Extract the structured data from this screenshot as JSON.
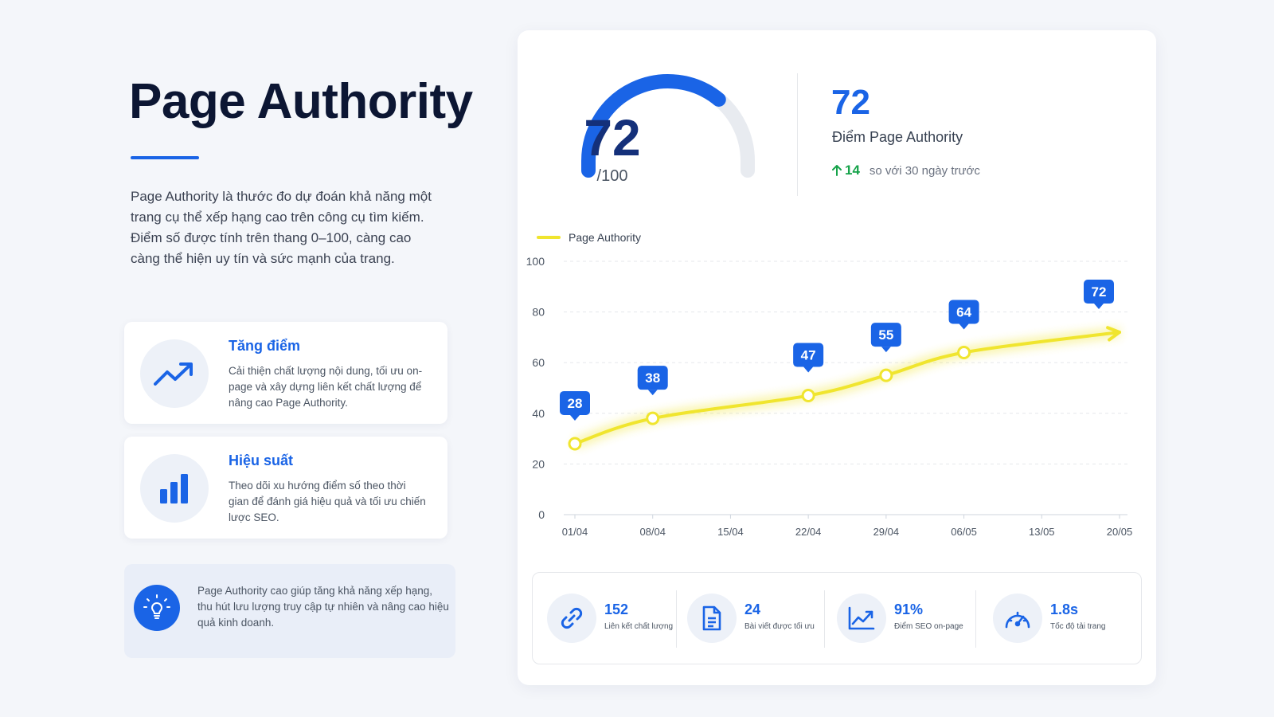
{
  "page": {
    "title": "Page Authority",
    "intro": "Page Authority là thước đo dự đoán khả năng một trang cụ thể xếp hạng cao trên công cụ tìm kiếm. Điểm số được tính trên thang 0–100, càng cao càng thể hiện uy tín và sức mạnh của trang."
  },
  "features": [
    {
      "title": "Tăng điểm",
      "description": "Cải thiện chất lượng nội dung, tối ưu on-page và xây dựng liên kết chất lượng để nâng cao Page Authority.",
      "icon": "trend-up-icon"
    },
    {
      "title": "Hiệu suất",
      "description": "Theo dõi xu hướng điểm số theo thời gian để đánh giá hiệu quả và tối ưu chiến lược SEO.",
      "icon": "bar-chart-icon"
    }
  ],
  "tip": {
    "text": "Page Authority cao giúp tăng khả năng xếp hạng, thu hút lưu lượng truy cập tự nhiên và nâng cao hiệu quả kinh doanh.",
    "icon": "lightbulb-icon"
  },
  "gauge": {
    "value": "72",
    "max_label": "/100",
    "fraction": 0.72,
    "color": "#1a64e6"
  },
  "summary": {
    "score": "72",
    "label": "Điểm Page Authority",
    "delta": "14",
    "delta_text": "so với 30 ngày trước",
    "delta_color": "#16a34a"
  },
  "chart_data": {
    "type": "line",
    "title": "",
    "xlabel": "",
    "ylabel": "",
    "categories": [
      "01/04",
      "08/04",
      "15/04",
      "22/04",
      "29/04",
      "06/05",
      "13/05",
      "20/05"
    ],
    "ylim": [
      0,
      100
    ],
    "yticks": [
      0,
      20,
      40,
      60,
      80,
      100
    ],
    "grid": true,
    "legend_position": "top-left",
    "series": [
      {
        "name": "Page Authority",
        "color": "#f0e52e",
        "points": [
          {
            "x": "01/04",
            "y": 28
          },
          {
            "x": "08/04",
            "y": 38
          },
          {
            "x": "22/04",
            "y": 47
          },
          {
            "x": "29/04",
            "y": 55
          },
          {
            "x": "06/05",
            "y": 64
          },
          {
            "x": "20/05",
            "y": 72
          }
        ]
      }
    ],
    "label_color": "#1a64e6"
  },
  "stats": [
    {
      "value": "152",
      "label": "Liên kết chất lượng",
      "icon": "link-icon"
    },
    {
      "value": "24",
      "label": "Bài viết được tối ưu",
      "icon": "document-icon"
    },
    {
      "value": "91%",
      "label": "Điểm SEO on-page",
      "icon": "trend-up-icon"
    },
    {
      "value": "1.8s",
      "label": "Tốc độ tải trang",
      "icon": "speedometer-icon"
    }
  ]
}
